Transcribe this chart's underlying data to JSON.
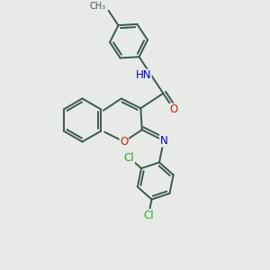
{
  "bg_color": "#e8eae8",
  "bond_color": "#3a5a4a",
  "atom_colors": {
    "N": "#0000cc",
    "O": "#cc2200",
    "Cl": "#22aa22",
    "H_gray": "#607060"
  },
  "lw": 1.4,
  "fs": 8.5,
  "off": 0.11,
  "r_benz": 0.8,
  "r_ph": 0.7
}
